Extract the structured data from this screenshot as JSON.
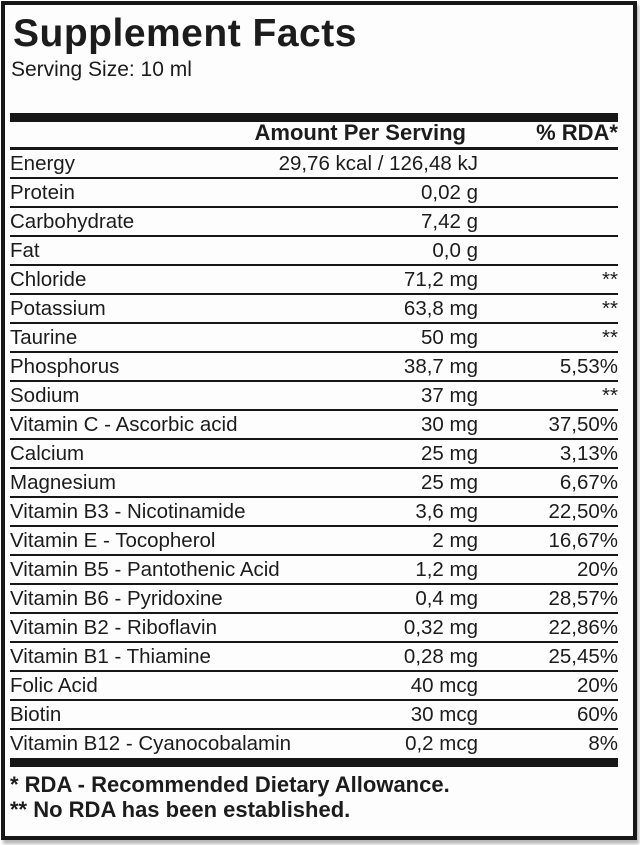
{
  "label": {
    "title": "Supplement Facts",
    "serving_size": "Serving Size: 10 ml",
    "columns": {
      "amount_header": "Amount Per Serving",
      "rda_header": "% RDA*"
    },
    "rows": [
      {
        "name": "Energy",
        "amount": "29,76 kcal / 126,48 kJ",
        "rda": ""
      },
      {
        "name": "Protein",
        "amount": "0,02 g",
        "rda": ""
      },
      {
        "name": "Carbohydrate",
        "amount": "7,42 g",
        "rda": ""
      },
      {
        "name": "Fat",
        "amount": "0,0 g",
        "rda": ""
      },
      {
        "name": "Chloride",
        "amount": "71,2 mg",
        "rda": "**"
      },
      {
        "name": "Potassium",
        "amount": "63,8 mg",
        "rda": "**"
      },
      {
        "name": "Taurine",
        "amount": "50 mg",
        "rda": "**"
      },
      {
        "name": "Phosphorus",
        "amount": "38,7 mg",
        "rda": "5,53%"
      },
      {
        "name": "Sodium",
        "amount": "37 mg",
        "rda": "**"
      },
      {
        "name": "Vitamin C - Ascorbic acid",
        "amount": "30 mg",
        "rda": "37,50%"
      },
      {
        "name": "Calcium",
        "amount": "25 mg",
        "rda": "3,13%"
      },
      {
        "name": "Magnesium",
        "amount": "25 mg",
        "rda": "6,67%"
      },
      {
        "name": "Vitamin B3 - Nicotinamide",
        "amount": "3,6 mg",
        "rda": "22,50%"
      },
      {
        "name": "Vitamin E - Tocopherol",
        "amount": "2 mg",
        "rda": "16,67%"
      },
      {
        "name": "Vitamin B5 - Pantothenic Acid",
        "amount": "1,2 mg",
        "rda": "20%"
      },
      {
        "name": "Vitamin B6 - Pyridoxine",
        "amount": "0,4 mg",
        "rda": "28,57%"
      },
      {
        "name": "Vitamin B2 - Riboflavin",
        "amount": "0,32 mg",
        "rda": "22,86%"
      },
      {
        "name": "Vitamin B1 - Thiamine",
        "amount": "0,28 mg",
        "rda": "25,45%"
      },
      {
        "name": "Folic Acid",
        "amount": "40 mcg",
        "rda": "20%"
      },
      {
        "name": "Biotin",
        "amount": "30 mcg",
        "rda": "60%"
      },
      {
        "name": "Vitamin B12 - Cyanocobalamin",
        "amount": "0,2 mcg",
        "rda": "8%"
      }
    ],
    "footnotes": [
      "* RDA - Recommended Dietary Allowance.",
      "** No RDA has been established."
    ],
    "colors": {
      "ink": "#1c1c1c",
      "line": "#171717",
      "paper": "#fdfdfd"
    }
  }
}
